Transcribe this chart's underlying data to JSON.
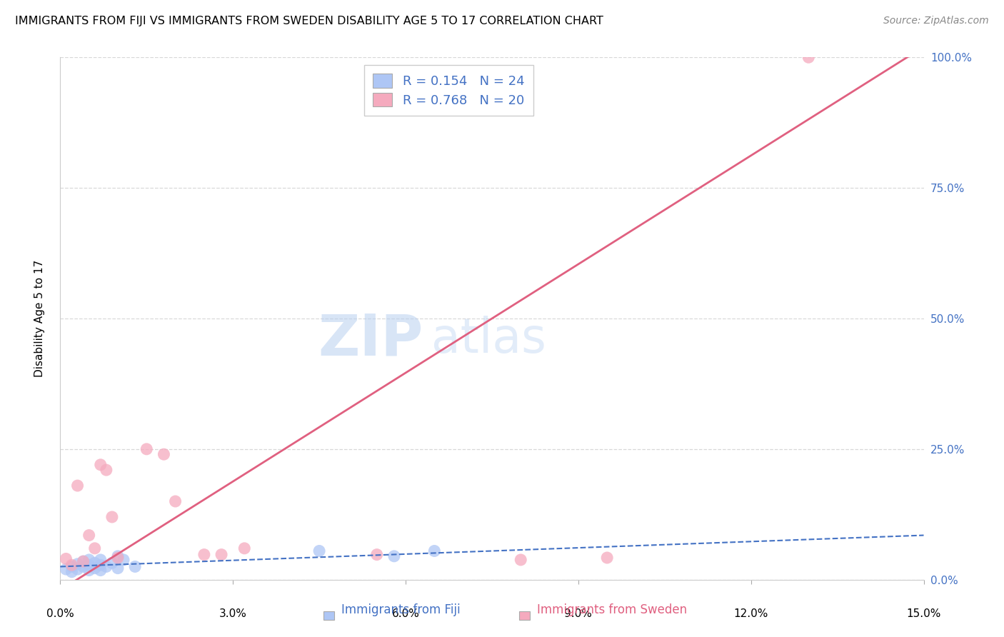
{
  "title": "IMMIGRANTS FROM FIJI VS IMMIGRANTS FROM SWEDEN DISABILITY AGE 5 TO 17 CORRELATION CHART",
  "source": "Source: ZipAtlas.com",
  "ylabel": "Disability Age 5 to 17",
  "xlabel_fiji": "Immigrants from Fiji",
  "xlabel_sweden": "Immigrants from Sweden",
  "xlim": [
    0.0,
    0.15
  ],
  "ylim": [
    0.0,
    1.0
  ],
  "xticks": [
    0.0,
    0.03,
    0.06,
    0.09,
    0.12,
    0.15
  ],
  "xticklabels": [
    "0.0%",
    "3.0%",
    "6.0%",
    "9.0%",
    "12.0%",
    "15.0%"
  ],
  "yticks": [
    0.0,
    0.25,
    0.5,
    0.75,
    1.0
  ],
  "yticklabels": [
    "0.0%",
    "25.0%",
    "50.0%",
    "75.0%",
    "100.0%"
  ],
  "fiji_color": "#aec6f5",
  "sweden_color": "#f5aabe",
  "fiji_line_color": "#4472c4",
  "sweden_line_color": "#e06080",
  "legend_fiji_label": "R = 0.154   N = 24",
  "legend_sweden_label": "R = 0.768   N = 20",
  "watermark_zip": "ZIP",
  "watermark_atlas": "atlas",
  "fiji_x": [
    0.001,
    0.002,
    0.002,
    0.003,
    0.003,
    0.004,
    0.004,
    0.005,
    0.005,
    0.005,
    0.006,
    0.006,
    0.007,
    0.007,
    0.007,
    0.008,
    0.009,
    0.01,
    0.01,
    0.011,
    0.013,
    0.045,
    0.058,
    0.065
  ],
  "fiji_y": [
    0.02,
    0.015,
    0.025,
    0.02,
    0.03,
    0.025,
    0.035,
    0.018,
    0.028,
    0.038,
    0.022,
    0.032,
    0.018,
    0.028,
    0.038,
    0.025,
    0.032,
    0.022,
    0.045,
    0.038,
    0.025,
    0.055,
    0.045,
    0.055
  ],
  "sweden_x": [
    0.001,
    0.002,
    0.003,
    0.004,
    0.005,
    0.006,
    0.007,
    0.008,
    0.009,
    0.01,
    0.015,
    0.018,
    0.02,
    0.025,
    0.028,
    0.032,
    0.055,
    0.08,
    0.095,
    0.13
  ],
  "sweden_y": [
    0.04,
    0.028,
    0.18,
    0.035,
    0.085,
    0.06,
    0.22,
    0.21,
    0.12,
    0.042,
    0.25,
    0.24,
    0.15,
    0.048,
    0.048,
    0.06,
    0.048,
    0.038,
    0.042,
    1.0
  ],
  "sweden_line_x0": 0.0,
  "sweden_line_y0": -0.02,
  "sweden_line_x1": 0.15,
  "sweden_line_y1": 1.02,
  "fiji_line_x0": 0.0,
  "fiji_line_y0": 0.025,
  "fiji_line_x1": 0.15,
  "fiji_line_y1": 0.085,
  "grid_color": "#d8d8d8",
  "background_color": "#ffffff",
  "title_fontsize": 11.5,
  "axis_label_fontsize": 11,
  "tick_fontsize": 11,
  "legend_fontsize": 13,
  "source_fontsize": 10
}
